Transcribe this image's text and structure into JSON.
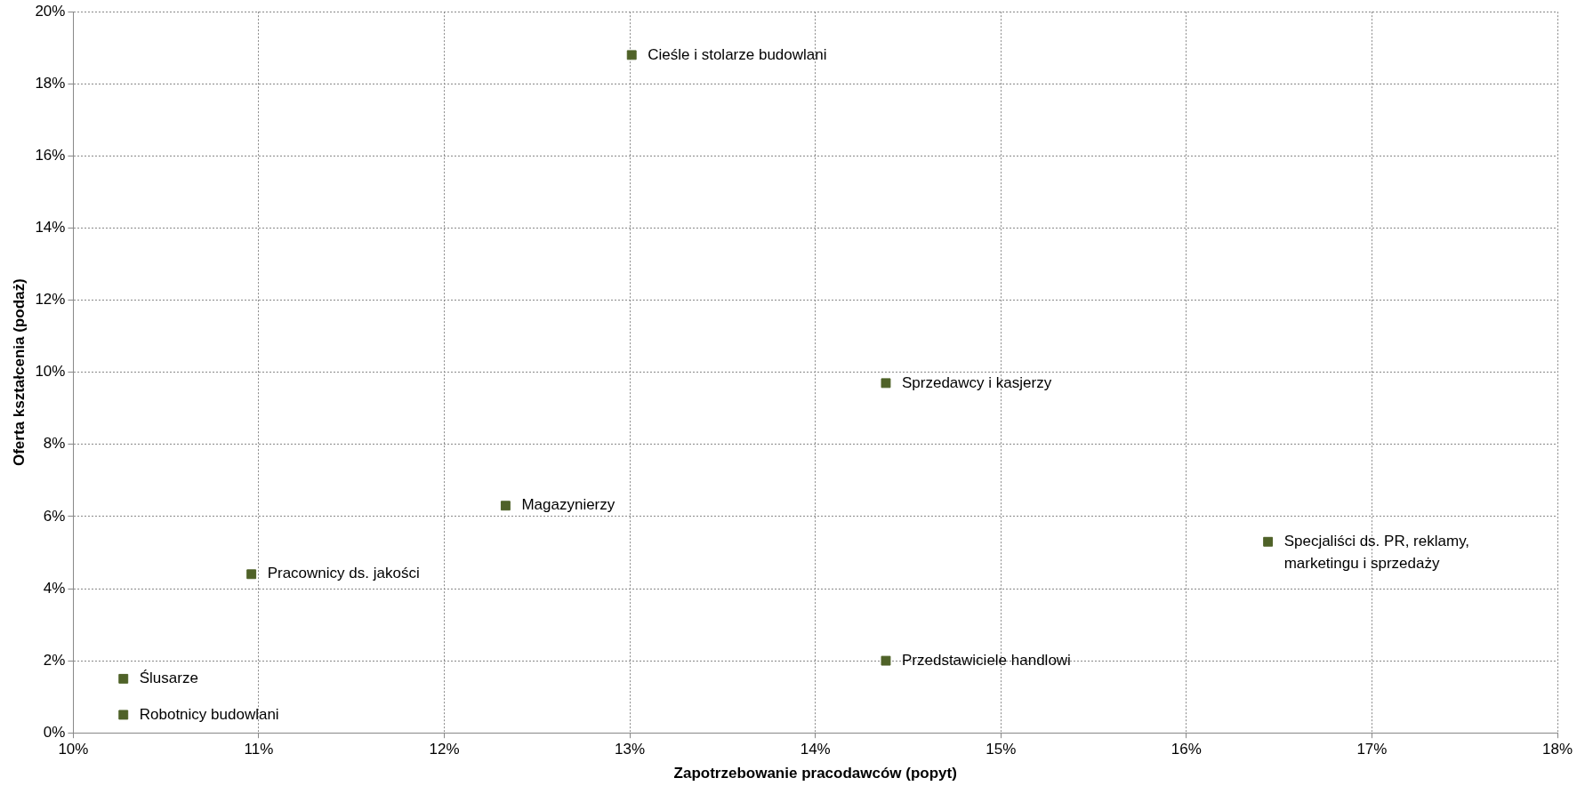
{
  "chart_data": {
    "type": "scatter",
    "xlabel": "Zapotrzebowanie pracodawców (popyt)",
    "ylabel": "Oferta kształcenia (podaż)",
    "series": [
      {
        "color": "#4f6228",
        "x": [
          13.01,
          14.38,
          12.33,
          16.44,
          10.96,
          14.38,
          10.27,
          10.27
        ],
        "values": [
          18.8,
          9.7,
          6.3,
          5.3,
          4.4,
          2.0,
          1.5,
          0.5
        ]
      }
    ],
    "marker": "square",
    "grid": true,
    "legend": false,
    "xlim": [
      10,
      18
    ],
    "xticks": [
      {
        "value": 10,
        "label": "10%"
      },
      {
        "value": 11,
        "label": "11%"
      },
      {
        "value": 12,
        "label": "12%"
      },
      {
        "value": 13,
        "label": "13%"
      },
      {
        "value": 14,
        "label": "14%"
      },
      {
        "value": 15,
        "label": "15%"
      },
      {
        "value": 16,
        "label": "16%"
      },
      {
        "value": 17,
        "label": "17%"
      },
      {
        "value": 18,
        "label": "18%"
      }
    ],
    "ylim": [
      0,
      20
    ],
    "yticks": [
      {
        "value": 0,
        "label": "0%"
      },
      {
        "value": 2,
        "label": "2%"
      },
      {
        "value": 4,
        "label": "4%"
      },
      {
        "value": 6,
        "label": "6%"
      },
      {
        "value": 8,
        "label": "8%"
      },
      {
        "value": 10,
        "label": "10%"
      },
      {
        "value": 12,
        "label": "12%"
      },
      {
        "value": 14,
        "label": "14%"
      },
      {
        "value": 16,
        "label": "16%"
      },
      {
        "value": 18,
        "label": "18%"
      },
      {
        "value": 20,
        "label": "20%"
      }
    ],
    "annotations": [
      {
        "text": "Cieśle i stolarze budowlani",
        "x": 13.01,
        "y": 18.8
      },
      {
        "text": "Sprzedawcy i kasjerzy",
        "x": 14.38,
        "y": 9.7
      },
      {
        "text": "Magazynierzy",
        "x": 12.33,
        "y": 6.3
      },
      {
        "text": "Specjaliści ds. PR, reklamy, marketingu i sprzedaży",
        "x": 16.44,
        "y": 5.3
      },
      {
        "text": "Pracownicy ds. jakości",
        "x": 10.96,
        "y": 4.4
      },
      {
        "text": "Przedstawiciele handlowi",
        "x": 14.38,
        "y": 2.0
      },
      {
        "text": "Ślusarze",
        "x": 10.27,
        "y": 1.5
      },
      {
        "text": "Robotnicy budowlani",
        "x": 10.27,
        "y": 0.5
      }
    ]
  }
}
